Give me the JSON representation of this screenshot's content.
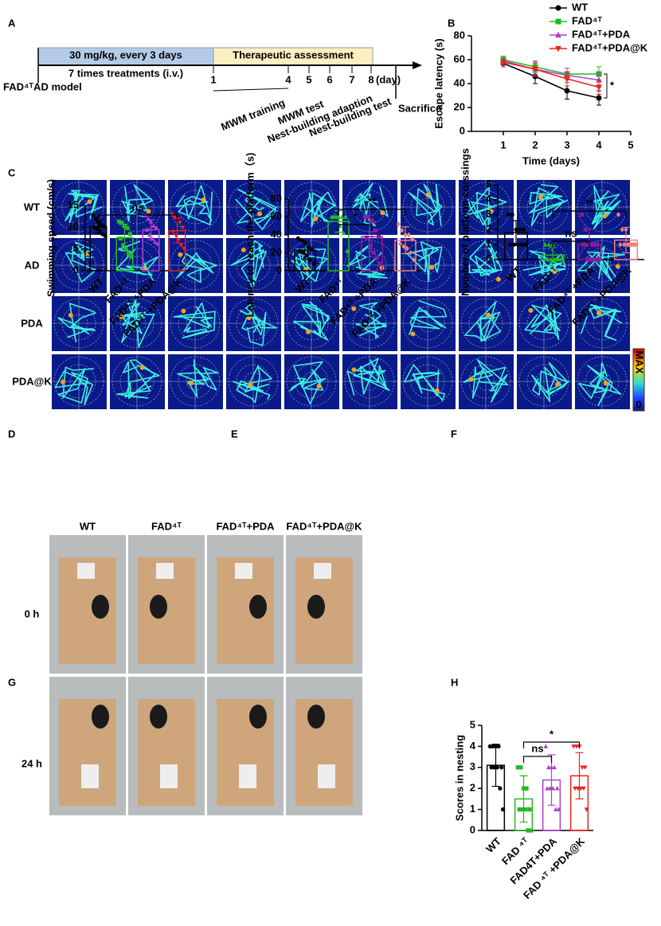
{
  "panel_letters": [
    "A",
    "B",
    "C",
    "D",
    "E",
    "F",
    "G",
    "H"
  ],
  "timeline": {
    "dose": "30 mg/kg, every 3 days",
    "assessment": "Therapeutic assessment",
    "treatments": "7 times treatments (i.v.)",
    "model": "FAD⁴ᵀAD model",
    "days": [
      "1",
      "4",
      "5",
      "6",
      "7",
      "8"
    ],
    "day_unit": "(day)",
    "events": [
      "MWM training",
      "MWM test",
      "Nest-building adaption",
      "Nest-building test"
    ],
    "sacrifice": "Sacrifice"
  },
  "heatmaps": {
    "rows": [
      "WT",
      "AD",
      "PDA",
      "PDA@K"
    ],
    "scale_max": "MAX",
    "scale_min": "0"
  },
  "nesting_photos": {
    "columns": [
      "WT",
      "FAD⁴ᵀ",
      "FAD⁴ᵀ+PDA",
      "FAD⁴ᵀ+PDA@K"
    ],
    "rows": [
      "0 h",
      "24 h"
    ]
  },
  "chart_data": [
    {
      "type": "line",
      "x": [
        1,
        2,
        3,
        4
      ],
      "xlim": [
        0,
        5
      ],
      "xticks": [
        1,
        2,
        3,
        4,
        5
      ],
      "ylim": [
        0,
        80
      ],
      "yticks": [
        0,
        20,
        40,
        60,
        80
      ],
      "xlabel": "Time (days)",
      "ylabel": "Escape latency (s)",
      "annotations": [
        "*"
      ],
      "series": [
        {
          "name": "WT",
          "color": "#000000",
          "marker": "circle",
          "values": [
            57,
            46,
            34,
            28
          ],
          "errors": [
            3,
            6,
            7,
            6
          ]
        },
        {
          "name": "FAD⁴ᵀ",
          "color": "#22bb22",
          "marker": "square",
          "values": [
            60,
            54,
            48,
            48
          ],
          "errors": [
            3,
            5,
            5,
            6
          ]
        },
        {
          "name": "FAD⁴ᵀ+PDA",
          "color": "#b040d0",
          "marker": "triangle",
          "values": [
            59,
            52,
            47,
            43
          ],
          "errors": [
            3,
            5,
            6,
            6
          ]
        },
        {
          "name": "FAD⁴ᵀ+PDA@K",
          "color": "#ee2020",
          "marker": "triangle-down",
          "values": [
            58,
            52,
            44,
            37
          ],
          "errors": [
            4,
            6,
            6,
            6
          ]
        }
      ]
    },
    {
      "type": "bar",
      "categories": [
        "WT",
        "FAD⁴ᵀ",
        "FAD⁴ᵀ +PDA",
        "FAD⁴ᵀ +PDA@K"
      ],
      "values": [
        10.1,
        7.6,
        9.4,
        9.2
      ],
      "errors": [
        1.5,
        3.1,
        2.3,
        2.8
      ],
      "colors": [
        "#000000",
        "#22bb22",
        "#b040d0",
        "#ee2020"
      ],
      "markers": [
        "circle",
        "square",
        "triangle",
        "triangle-down"
      ],
      "points": [
        [
          12.8,
          12,
          11.2,
          10.6,
          10.2,
          9.9,
          9.6,
          9.2,
          8.4,
          8.0
        ],
        [
          11.3,
          11,
          10.3,
          9.8,
          8.4,
          7.4,
          5.9,
          4.9,
          3.7,
          3.2
        ],
        [
          12.7,
          11.9,
          11.3,
          10.3,
          9.9,
          9.4,
          8.2,
          7.3,
          6.6,
          6.2
        ],
        [
          13,
          12.4,
          11.9,
          11.1,
          9.9,
          8.9,
          8.1,
          7.1,
          5.9,
          5.1
        ]
      ],
      "ylim": [
        0,
        15
      ],
      "yticks": [
        0,
        5,
        10,
        15
      ],
      "ylabel": "Swimming speed (cm/s)",
      "annotations": [
        "ns"
      ]
    },
    {
      "type": "bar",
      "categories": [
        "WT",
        "FAD⁴ᵀ",
        "FAD⁴ᵀ +PDA",
        "FAD⁴ᵀ +PDA@K"
      ],
      "values": [
        23,
        55,
        38,
        34
      ],
      "errors": [
        10,
        12,
        17,
        15
      ],
      "colors": [
        "#000000",
        "#22bb22",
        "#8a1a9a",
        "#f08080"
      ],
      "markers": [
        "circle",
        "triangle",
        "square",
        "diamond"
      ],
      "points": [
        [
          36,
          34,
          31,
          26,
          24,
          22,
          20,
          17,
          12,
          8
        ],
        [
          60,
          60,
          60,
          60,
          60,
          60,
          60,
          50,
          42,
          22
        ],
        [
          60,
          60,
          56,
          45,
          38,
          37,
          28,
          20,
          15,
          8
        ],
        [
          52,
          45,
          40,
          40,
          35,
          30,
          27,
          25,
          20,
          12
        ]
      ],
      "ylim": [
        0,
        80
      ],
      "yticks": [
        0,
        20,
        40,
        60,
        80
      ],
      "ylabel": "Latency to reach the platform（s)",
      "annotations": [
        "*",
        "**"
      ]
    },
    {
      "type": "bar",
      "categories": [
        "WT",
        "FAD⁴ᵀ",
        "FAD⁴ᵀ +PDA",
        "FAD⁴ᵀ +PDA@K"
      ],
      "values": [
        1.8,
        0.3,
        1.0,
        1.3
      ],
      "errors": [
        0.8,
        0.5,
        1.0,
        0.85
      ],
      "colors": [
        "#000000",
        "#22bb22",
        "#8a1a9a",
        "#f08080"
      ],
      "markers": [
        "circle",
        "triangle",
        "square",
        "diamond"
      ],
      "points": [
        [
          3,
          3,
          2,
          2,
          2,
          1,
          1,
          1,
          1,
          1
        ],
        [
          1,
          1,
          1,
          0,
          0,
          0,
          0,
          0,
          0,
          0
        ],
        [
          3,
          2,
          1,
          1,
          1,
          1,
          0,
          0,
          0,
          0
        ],
        [
          3,
          2,
          2,
          1,
          1,
          1,
          1,
          1,
          1,
          1
        ]
      ],
      "ylim": [
        0,
        5
      ],
      "yticks": [
        0,
        1,
        2,
        3,
        4,
        5
      ],
      "zero_line": true,
      "ylabel": "Number of platform corssings",
      "annotations": [
        "ns",
        "**"
      ]
    },
    {
      "type": "bar",
      "categories": [
        "WT",
        "FAD ⁴ᵀ",
        "FAD4T+PDA",
        "FAD ⁴ᵀ +PDA@K"
      ],
      "values": [
        3.1,
        1.5,
        2.4,
        2.6
      ],
      "errors": [
        1.0,
        1.1,
        1.2,
        1.1
      ],
      "colors": [
        "#000000",
        "#22bb22",
        "#b040d0",
        "#ee2020"
      ],
      "markers": [
        "circle",
        "square",
        "triangle",
        "triangle-down"
      ],
      "points": [
        [
          4,
          4,
          4,
          4,
          3,
          3,
          3,
          3,
          2,
          1
        ],
        [
          3,
          3,
          2,
          2,
          1,
          1,
          1,
          1,
          0,
          0
        ],
        [
          4,
          3,
          3,
          3,
          2,
          2,
          2,
          2,
          1,
          1
        ],
        [
          4,
          4,
          4,
          3,
          3,
          2,
          2,
          2,
          2,
          1
        ]
      ],
      "ylim": [
        0,
        5
      ],
      "yticks": [
        0,
        1,
        2,
        3,
        4,
        5
      ],
      "ylabel": "Scores in nesting",
      "annotations": [
        "ns",
        "*"
      ]
    }
  ]
}
